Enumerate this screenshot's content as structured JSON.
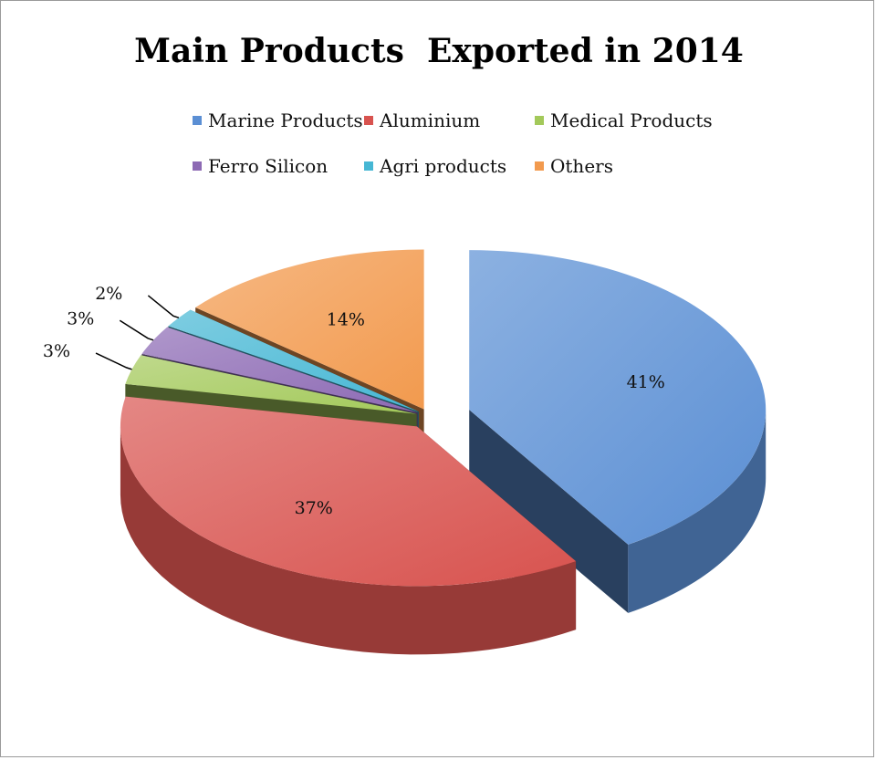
{
  "chart_data": {
    "type": "pie",
    "title": "Main Products  Exported in 2014",
    "legend_position": "top",
    "categories": [
      "Marine Products",
      "Aluminium",
      "Medical Products",
      "Ferro Silicon",
      "Agri products",
      "Others"
    ],
    "values": [
      41,
      37,
      3,
      3,
      2,
      14
    ],
    "data_labels": [
      "41%",
      "37%",
      "3%",
      "3%",
      "2%",
      "14%"
    ],
    "colors": [
      "#5b8fd4",
      "#d8534f",
      "#a3c95a",
      "#8d6ab4",
      "#46b7d4",
      "#f29a4e"
    ],
    "style": "3d-exploded"
  }
}
